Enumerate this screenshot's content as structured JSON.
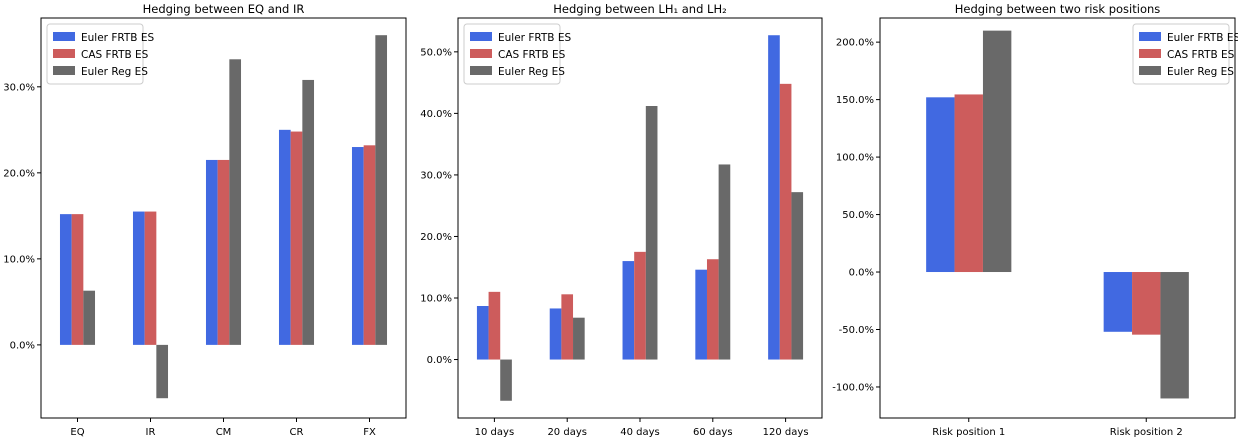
{
  "series_colors": [
    "#4169e1",
    "#cd5c5c",
    "#696969"
  ],
  "chart_data": [
    {
      "type": "bar",
      "title": "Hedging between EQ and IR",
      "categories": [
        "EQ",
        "IR",
        "CM",
        "CR",
        "FX"
      ],
      "series": [
        {
          "name": "Euler FRTB ES",
          "values": [
            15.2,
            15.5,
            21.5,
            25.0,
            23.0
          ]
        },
        {
          "name": "CAS FRTB ES",
          "values": [
            15.2,
            15.5,
            21.5,
            24.8,
            23.2
          ]
        },
        {
          "name": "Euler Reg ES",
          "values": [
            6.3,
            -6.2,
            33.2,
            30.8,
            36.0
          ]
        }
      ],
      "ylim": [
        -8.5,
        38.0
      ],
      "yticks": [
        0,
        10,
        20,
        30
      ],
      "ytick_labels": [
        "0.0%",
        "10.0%",
        "20.0%",
        "30.0%"
      ],
      "xlabel": "",
      "ylabel": "",
      "legend": "top-left",
      "grid": false
    },
    {
      "type": "bar",
      "title": "Hedging between LH₁ and LH₂",
      "categories": [
        "10 days",
        "20 days",
        "40 days",
        "60 days",
        "120 days"
      ],
      "series": [
        {
          "name": "Euler FRTB ES",
          "values": [
            8.7,
            8.3,
            16.0,
            14.6,
            52.7
          ]
        },
        {
          "name": "CAS FRTB ES",
          "values": [
            11.0,
            10.6,
            17.5,
            16.3,
            44.8
          ]
        },
        {
          "name": "Euler Reg ES",
          "values": [
            -6.7,
            6.8,
            41.2,
            31.7,
            27.2
          ]
        }
      ],
      "ylim": [
        -9.5,
        55.5
      ],
      "yticks": [
        0,
        10,
        20,
        30,
        40,
        50
      ],
      "ytick_labels": [
        "0.0%",
        "10.0%",
        "20.0%",
        "30.0%",
        "40.0%",
        "50.0%"
      ],
      "xlabel": "",
      "ylabel": "",
      "legend": "top-left",
      "grid": false
    },
    {
      "type": "bar",
      "title": "Hedging between two risk positions",
      "categories": [
        "Risk position 1",
        "Risk position 2"
      ],
      "series": [
        {
          "name": "Euler FRTB ES",
          "values": [
            152.0,
            -52.0
          ]
        },
        {
          "name": "CAS FRTB ES",
          "values": [
            154.5,
            -54.5
          ]
        },
        {
          "name": "Euler Reg ES",
          "values": [
            210.0,
            -110.0
          ]
        }
      ],
      "ylim": [
        -127.0,
        221.0
      ],
      "yticks": [
        -100,
        -50,
        0,
        50,
        100,
        150,
        200
      ],
      "ytick_labels": [
        "-100.0%",
        "-50.0%",
        "0.0%",
        "50.0%",
        "100.0%",
        "150.0%",
        "200.0%"
      ],
      "xlabel": "",
      "ylabel": "",
      "legend": "top-right",
      "grid": false
    }
  ]
}
